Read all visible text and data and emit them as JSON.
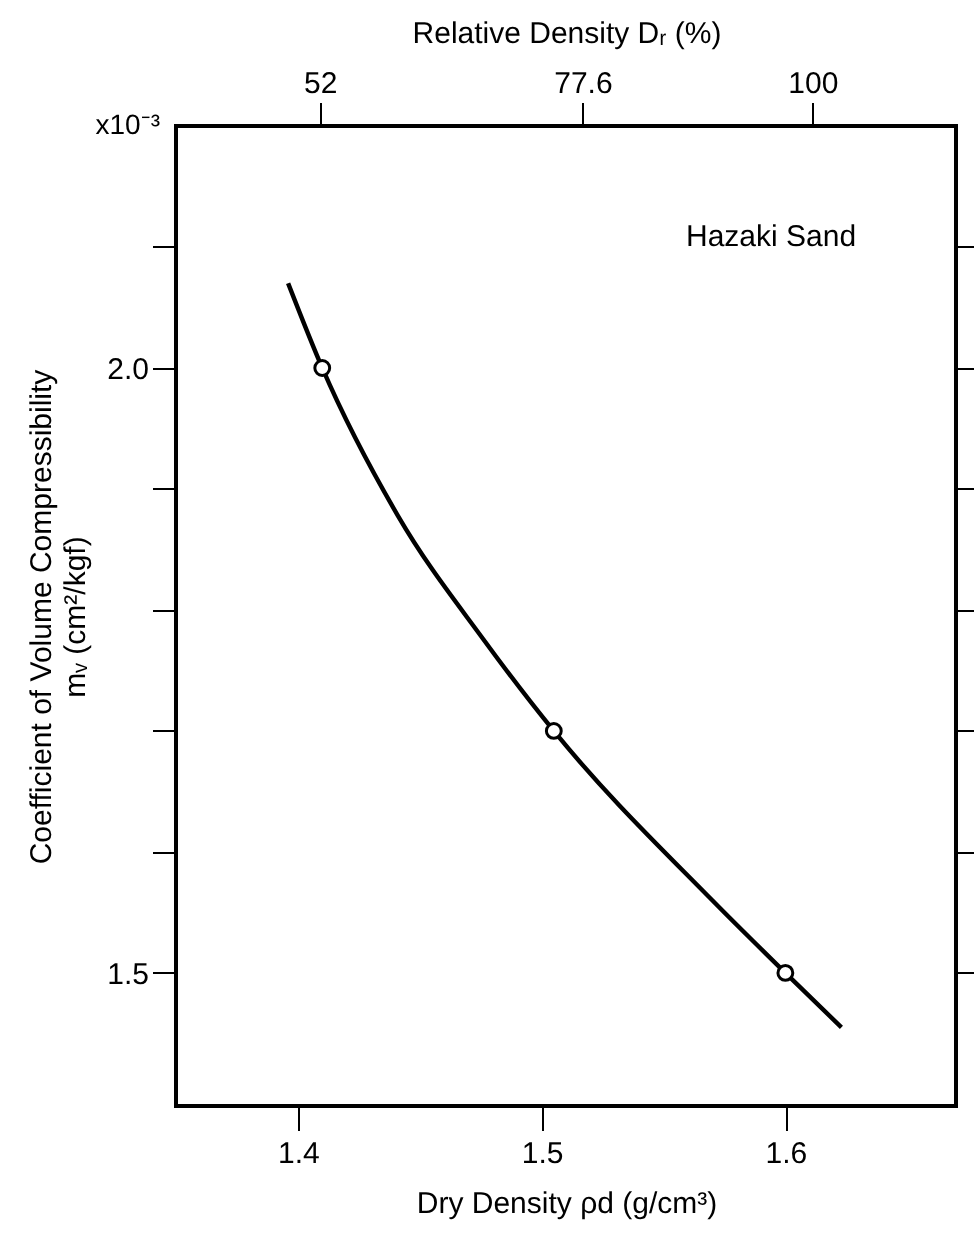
{
  "chart_data": {
    "type": "line",
    "xlabel": "Dry Density ρd (g/cm³)",
    "ylabel": "Coefficient of Volume Compressibility\nmᵥ (cm²/kgf)",
    "x2label": "Relative Density Dᵣ (%)",
    "xlim": [
      1.35,
      1.67
    ],
    "xticks": [
      1.4,
      1.5,
      1.6
    ],
    "x2lim": [
      38,
      114
    ],
    "x2ticks": [
      52,
      77.6,
      100
    ],
    "ylim": [
      1.39,
      2.2
    ],
    "yticks": [
      1.5,
      {
        "value": 1.6,
        "label": null
      },
      {
        "value": 1.7,
        "label": null
      },
      {
        "value": 1.8,
        "label": null
      },
      {
        "value": 1.9,
        "label": null
      },
      {
        "value": 2.0,
        "label": "2.0"
      },
      {
        "value": 2.1,
        "label": null
      }
    ],
    "grid": false,
    "annotations": [
      "Hazaki Sand",
      "x10⁻³"
    ],
    "series": [
      {
        "color": "#000000",
        "marker": "none",
        "line_style": "solid",
        "x": [
          1.396,
          1.41,
          1.441,
          1.476,
          1.505,
          1.57,
          1.6,
          1.623
        ],
        "values": [
          2.07,
          2.0,
          1.878,
          1.776,
          1.7,
          1.56,
          1.5,
          1.455
        ]
      },
      {
        "type": "scatter",
        "color": "#000000",
        "marker": "circle",
        "x": [
          1.41,
          1.505,
          1.6
        ],
        "values": [
          2.0,
          1.7,
          1.5
        ]
      }
    ]
  }
}
